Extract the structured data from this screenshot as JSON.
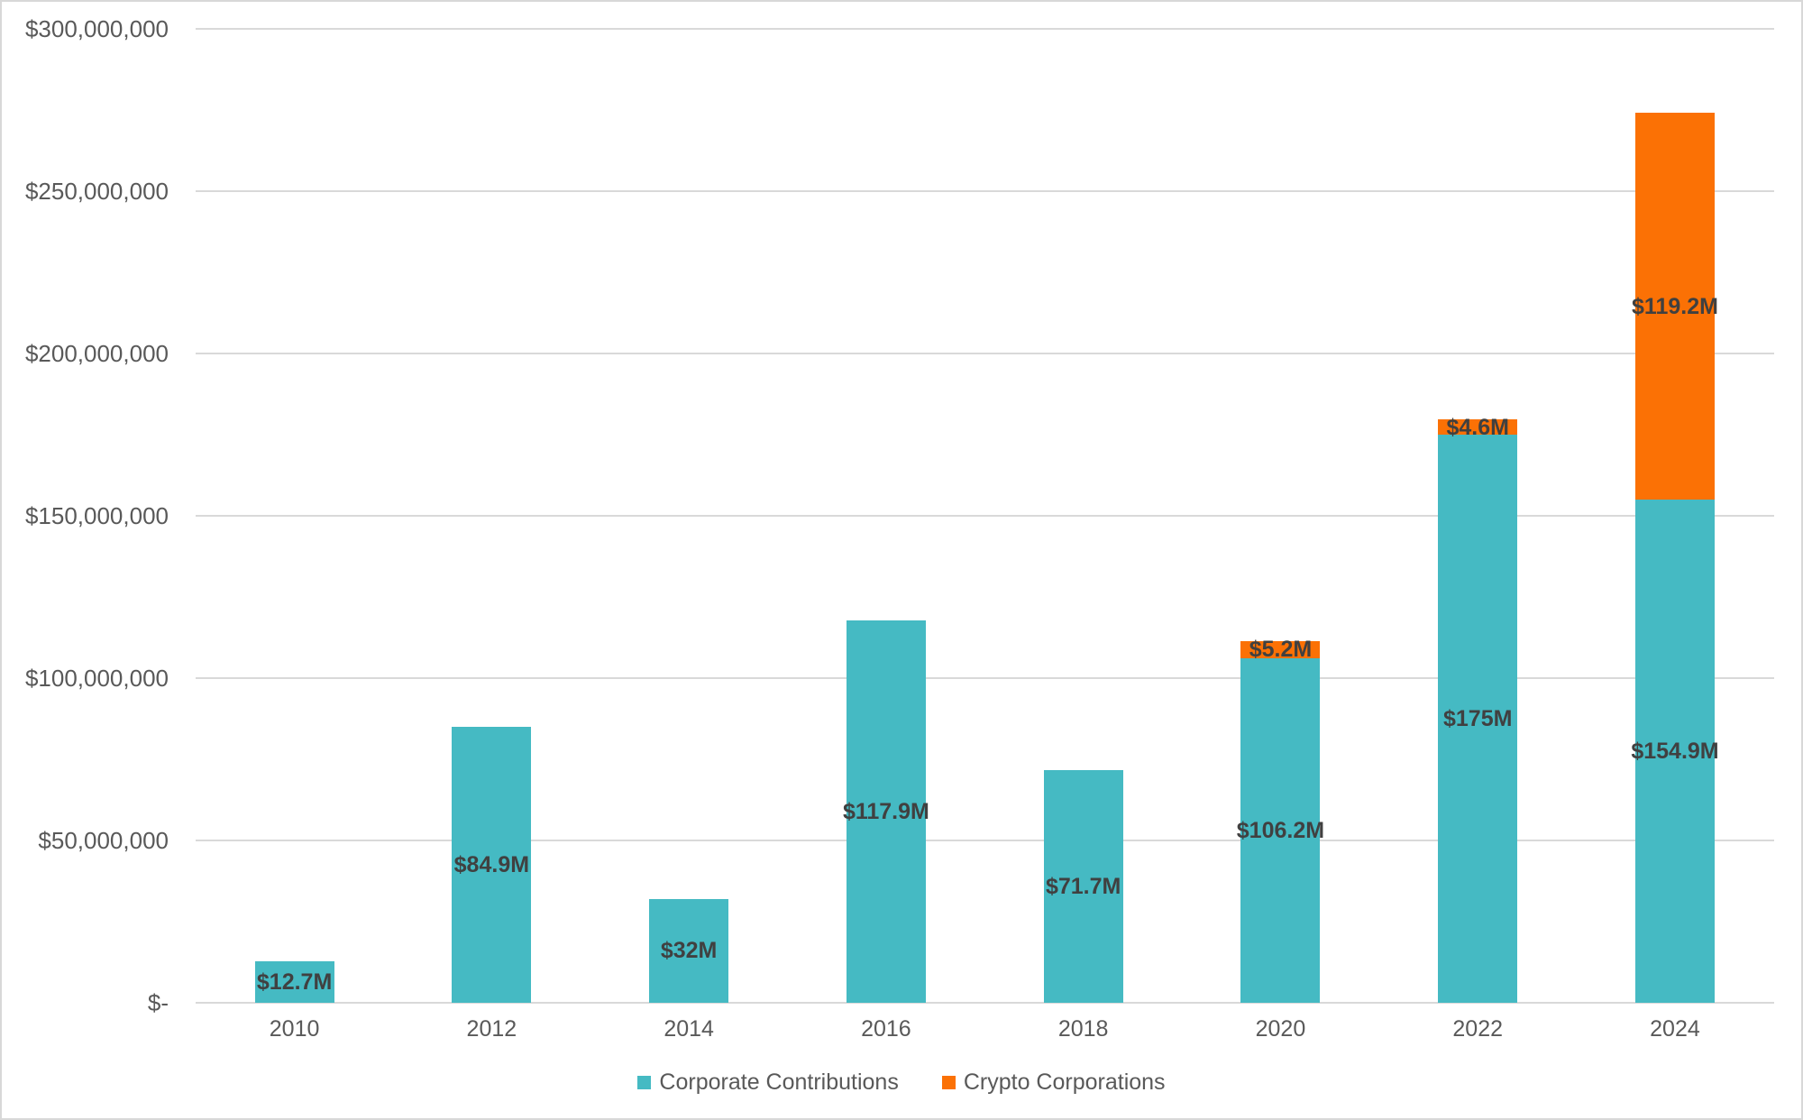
{
  "chart_data": {
    "type": "bar",
    "stacked": true,
    "title": "",
    "categories": [
      "2010",
      "2012",
      "2014",
      "2016",
      "2018",
      "2020",
      "2022",
      "2024"
    ],
    "series": [
      {
        "name": "Corporate Contributions",
        "color": "#45bac3",
        "unit": "millions USD",
        "values": [
          12.7,
          84.9,
          32,
          117.9,
          71.7,
          106.2,
          175,
          154.9
        ],
        "labels": [
          "$12.7M",
          "$84.9M",
          "$32M",
          "$117.9M",
          "$71.7M",
          "$106.2M",
          "$175M",
          "$154.9M"
        ]
      },
      {
        "name": "Crypto Corporations",
        "color": "#fb7105",
        "unit": "millions USD",
        "values": [
          null,
          null,
          null,
          null,
          null,
          5.2,
          4.6,
          119.2
        ],
        "labels": [
          null,
          null,
          null,
          null,
          null,
          "$5.2M",
          "$4.6M",
          "$119.2M"
        ]
      }
    ],
    "y_axis": {
      "min": 0,
      "max": 300,
      "step": 50,
      "unit": "USD",
      "tick_labels": [
        "$-",
        "$50,000,000",
        "$100,000,000",
        "$150,000,000",
        "$200,000,000",
        "$250,000,000",
        "$300,000,000"
      ]
    },
    "grid": true,
    "legend_position": "bottom",
    "colors": {
      "axis_text": "#595959",
      "data_label_text": "#404040",
      "gridline": "#d9d9d9",
      "frame_border": "#d8d8d8",
      "background": "#ffffff"
    }
  }
}
